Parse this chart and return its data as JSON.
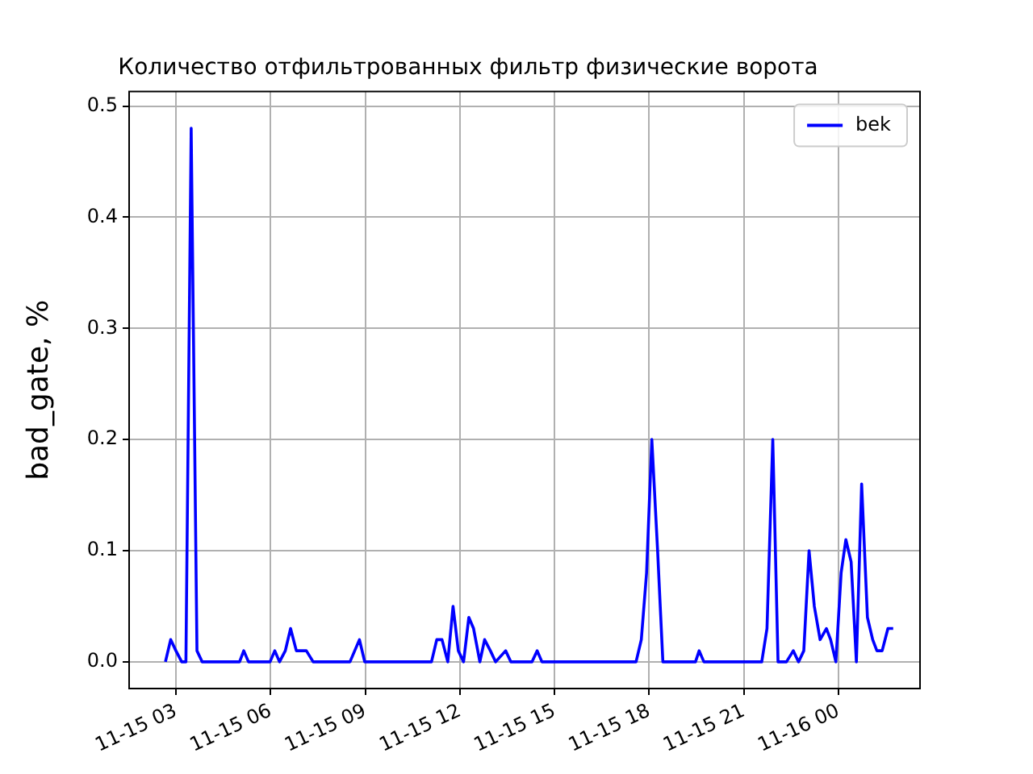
{
  "chart_data": {
    "type": "line",
    "title": "Количество отфильтрованных фильтр физические ворота",
    "ylabel": "bad_gate, %",
    "x": [
      "--11-15T02:40",
      "--11-15T02:50",
      "--11-15T03:00",
      "--11-15T03:11",
      "--11-15T03:19",
      "--11-15T03:29",
      "--11-15T03:40",
      "--11-15T03:50",
      "--11-15T05:01",
      "--11-15T05:09",
      "--11-15T05:18",
      "--11-15T05:59",
      "--11-15T06:08",
      "--11-15T06:17",
      "--11-15T06:28",
      "--11-15T06:38",
      "--11-15T06:49",
      "--11-15T07:08",
      "--11-15T07:21",
      "--11-15T08:31",
      "--11-15T08:49",
      "--11-15T08:59",
      "--11-15T11:06",
      "--11-15T11:16",
      "--11-15T11:26",
      "--11-15T11:37",
      "--11-15T11:47",
      "--11-15T11:57",
      "--11-15T12:07",
      "--11-15T12:17",
      "--11-15T12:26",
      "--11-15T12:38",
      "--11-15T12:47",
      "--11-15T12:58",
      "--11-15T13:08",
      "--11-15T13:27",
      "--11-15T13:37",
      "--11-15T14:17",
      "--11-15T14:27",
      "--11-15T14:36",
      "--11-15T17:35",
      "--11-15T17:45",
      "--11-15T17:55",
      "--11-15T18:05",
      "--11-15T18:16",
      "--11-15T18:26",
      "--11-15T19:28",
      "--11-15T19:35",
      "--11-15T19:44",
      "--11-15T21:34",
      "--11-15T21:44",
      "--11-15T21:55",
      "--11-15T22:05",
      "--11-15T22:21",
      "--11-15T22:34",
      "--11-15T22:44",
      "--11-15T22:54",
      "--11-15T23:04",
      "--11-15T23:14",
      "--11-15T23:25",
      "--11-15T23:37",
      "--11-15T23:45",
      "--11-15T23:55",
      "--11-16T00:05",
      "--11-16T00:14",
      "--11-16T00:24",
      "--11-16T00:34",
      "--11-16T00:44",
      "--11-16T00:55",
      "--11-16T01:05",
      "--11-16T01:13",
      "--11-16T01:23",
      "--11-16T01:34",
      "--11-16T01:44"
    ],
    "series": [
      {
        "name": "bek",
        "color": "#0000ff",
        "values": [
          0,
          0.02,
          0.01,
          0,
          0,
          0.48,
          0.01,
          0,
          0,
          0.01,
          0,
          0,
          0.01,
          0,
          0.01,
          0.03,
          0.01,
          0.01,
          0,
          0,
          0.02,
          0,
          0,
          0.02,
          0.02,
          0,
          0.05,
          0.01,
          0,
          0.04,
          0.03,
          0,
          0.02,
          0.01,
          0,
          0.01,
          0,
          0,
          0.01,
          0,
          0,
          0.02,
          0.08,
          0.2,
          0.1,
          0,
          0,
          0.01,
          0,
          0,
          0.03,
          0.2,
          0,
          0,
          0.01,
          0,
          0.01,
          0.1,
          0.05,
          0.02,
          0.03,
          0.02,
          0,
          0.08,
          0.11,
          0.09,
          0,
          0.16,
          0.04,
          0.02,
          0.01,
          0.01,
          0.03,
          0.03
        ]
      }
    ],
    "xlim": [
      "--11-15T01:31",
      "--11-16T02:35"
    ],
    "xticks": [
      {
        "value": "--11-15T03:00",
        "label": "11-15 03"
      },
      {
        "value": "--11-15T06:00",
        "label": "11-15 06"
      },
      {
        "value": "--11-15T09:00",
        "label": "11-15 09"
      },
      {
        "value": "--11-15T12:00",
        "label": "11-15 12"
      },
      {
        "value": "--11-15T15:00",
        "label": "11-15 15"
      },
      {
        "value": "--11-15T18:00",
        "label": "11-15 18"
      },
      {
        "value": "--11-15T21:00",
        "label": "11-15 21"
      },
      {
        "value": "--11-16T00:00",
        "label": "11-16 00"
      }
    ],
    "ylim": [
      -0.024,
      0.513
    ],
    "yticks": [
      {
        "value": 0,
        "label": "0.0"
      },
      {
        "value": 0.1,
        "label": "0.1"
      },
      {
        "value": 0.2,
        "label": "0.2"
      },
      {
        "value": 0.3,
        "label": "0.3"
      },
      {
        "value": 0.4,
        "label": "0.4"
      },
      {
        "value": 0.5,
        "label": "0.5"
      }
    ],
    "grid": true,
    "legend": "top right",
    "marker": "none",
    "line_style": "solid"
  }
}
